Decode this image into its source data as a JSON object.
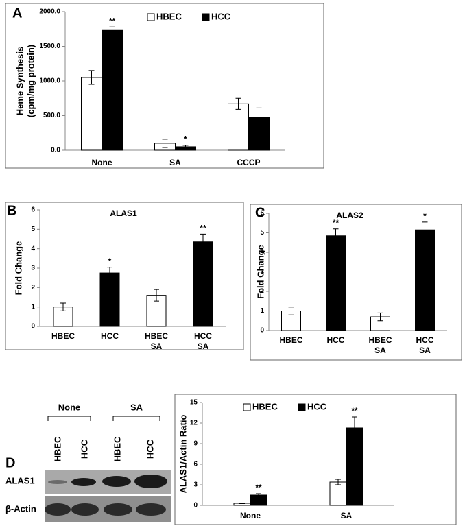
{
  "chart_data": [
    {
      "type": "bar",
      "panel": "A",
      "ylabel": [
        "Heme Synthesis",
        "(cpm/mg protein)"
      ],
      "categories": [
        "None",
        "SA",
        "CCCP"
      ],
      "series": [
        {
          "name": "HBEC",
          "color": "#ffffff",
          "values": [
            1050,
            100,
            670
          ],
          "errors": [
            100,
            60,
            80
          ]
        },
        {
          "name": "HCC",
          "color": "#000000",
          "values": [
            1730,
            50,
            480
          ],
          "errors": [
            50,
            20,
            130
          ],
          "annotations": [
            "**",
            "*",
            null
          ]
        }
      ],
      "ylim": [
        0,
        2000
      ],
      "yticks": [
        {
          "value": 0,
          "label": "0.0"
        },
        {
          "value": 500,
          "label": "500.0"
        },
        {
          "value": 1000,
          "label": "1000.0"
        },
        {
          "value": 1500,
          "label": "1500.0"
        },
        {
          "value": 2000,
          "label": "2000.0"
        }
      ],
      "legend": "top"
    },
    {
      "type": "bar",
      "panel": "B",
      "title": "ALAS1",
      "ylabel": [
        "Fold Change"
      ],
      "categories": [
        [
          "HBEC"
        ],
        [
          "HCC"
        ],
        [
          "HBEC",
          "SA"
        ],
        [
          "HCC",
          "SA"
        ]
      ],
      "values": [
        1.0,
        2.75,
        1.6,
        4.35
      ],
      "errors": [
        0.2,
        0.3,
        0.3,
        0.4
      ],
      "colors": [
        "#ffffff",
        "#000000",
        "#ffffff",
        "#000000"
      ],
      "annotations": [
        null,
        "*",
        null,
        "**"
      ],
      "ylim": [
        0,
        6
      ],
      "yticks": [
        0,
        1,
        2,
        3,
        4,
        5,
        6
      ]
    },
    {
      "type": "bar",
      "panel": "C",
      "title": "ALAS2",
      "ylabel": [
        "Fold Change"
      ],
      "categories": [
        [
          "HBEC"
        ],
        [
          "HCC"
        ],
        [
          "HBEC",
          "SA"
        ],
        [
          "HCC",
          "SA"
        ]
      ],
      "values": [
        1.0,
        4.85,
        0.7,
        5.15
      ],
      "errors": [
        0.2,
        0.35,
        0.2,
        0.4
      ],
      "colors": [
        "#ffffff",
        "#000000",
        "#ffffff",
        "#000000"
      ],
      "annotations": [
        null,
        "**",
        null,
        "*"
      ],
      "ylim": [
        0,
        6
      ],
      "yticks": [
        0,
        1,
        2,
        3,
        4,
        5,
        6
      ]
    },
    {
      "type": "bar",
      "panel": "D",
      "ylabel": [
        "ALAS1/Actin Ratio"
      ],
      "categories": [
        "None",
        "SA"
      ],
      "series": [
        {
          "name": "HBEC",
          "color": "#ffffff",
          "values": [
            0.3,
            3.4
          ],
          "errors": [
            0.05,
            0.4
          ]
        },
        {
          "name": "HCC",
          "color": "#000000",
          "values": [
            1.5,
            11.3
          ],
          "errors": [
            0.2,
            1.6
          ],
          "annotations": [
            "**",
            "**"
          ]
        }
      ],
      "ylim": [
        0,
        15
      ],
      "yticks": [
        0,
        3,
        6,
        9,
        12,
        15
      ],
      "legend": "top"
    }
  ],
  "blot": {
    "groups": [
      "None",
      "SA"
    ],
    "lanes": [
      "HBEC",
      "HCC",
      "HBEC",
      "HCC"
    ],
    "rows": [
      "ALAS1",
      "β-Actin"
    ]
  }
}
